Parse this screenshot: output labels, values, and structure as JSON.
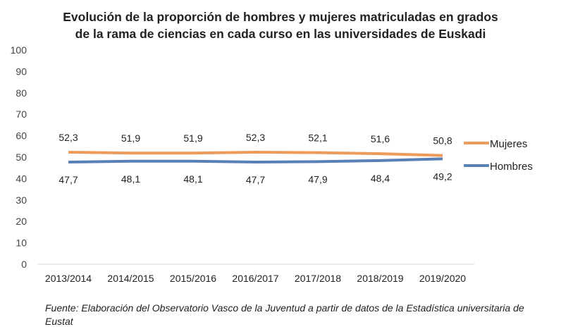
{
  "chart_data": {
    "type": "line",
    "title_lines": [
      "Evolución de la proporción de hombres y mujeres matriculadas en grados",
      "de la rama de ciencias en cada curso en las universidades de Euskadi"
    ],
    "categories": [
      "2013/2014",
      "2014/2015",
      "2015/2016",
      "2016/2017",
      "2017/2018",
      "2018/2019",
      "2019/2020"
    ],
    "series": [
      {
        "name": "Mujeres",
        "color": "#ED9B5B",
        "values": [
          52.3,
          51.9,
          51.9,
          52.3,
          52.1,
          51.6,
          50.8
        ],
        "labels": [
          "52,3",
          "51,9",
          "51,9",
          "52,3",
          "52,1",
          "51,6",
          "50,8"
        ],
        "label_position": "above"
      },
      {
        "name": "Hombres",
        "color": "#5A80B8",
        "values": [
          47.7,
          48.1,
          48.1,
          47.7,
          47.9,
          48.4,
          49.2
        ],
        "labels": [
          "47,7",
          "48,1",
          "48,1",
          "47,7",
          "47,9",
          "48,4",
          "49,2"
        ],
        "label_position": "below"
      }
    ],
    "ylim": [
      0,
      100
    ],
    "yticks": [
      "0",
      "10",
      "20",
      "30",
      "40",
      "50",
      "60",
      "70",
      "80",
      "90",
      "100"
    ],
    "grid": false,
    "legend": "right"
  },
  "source": "Fuente: Elaboración del Observatorio Vasco de la Juventud a partir de datos de la Estadística universitaria de Eustat"
}
